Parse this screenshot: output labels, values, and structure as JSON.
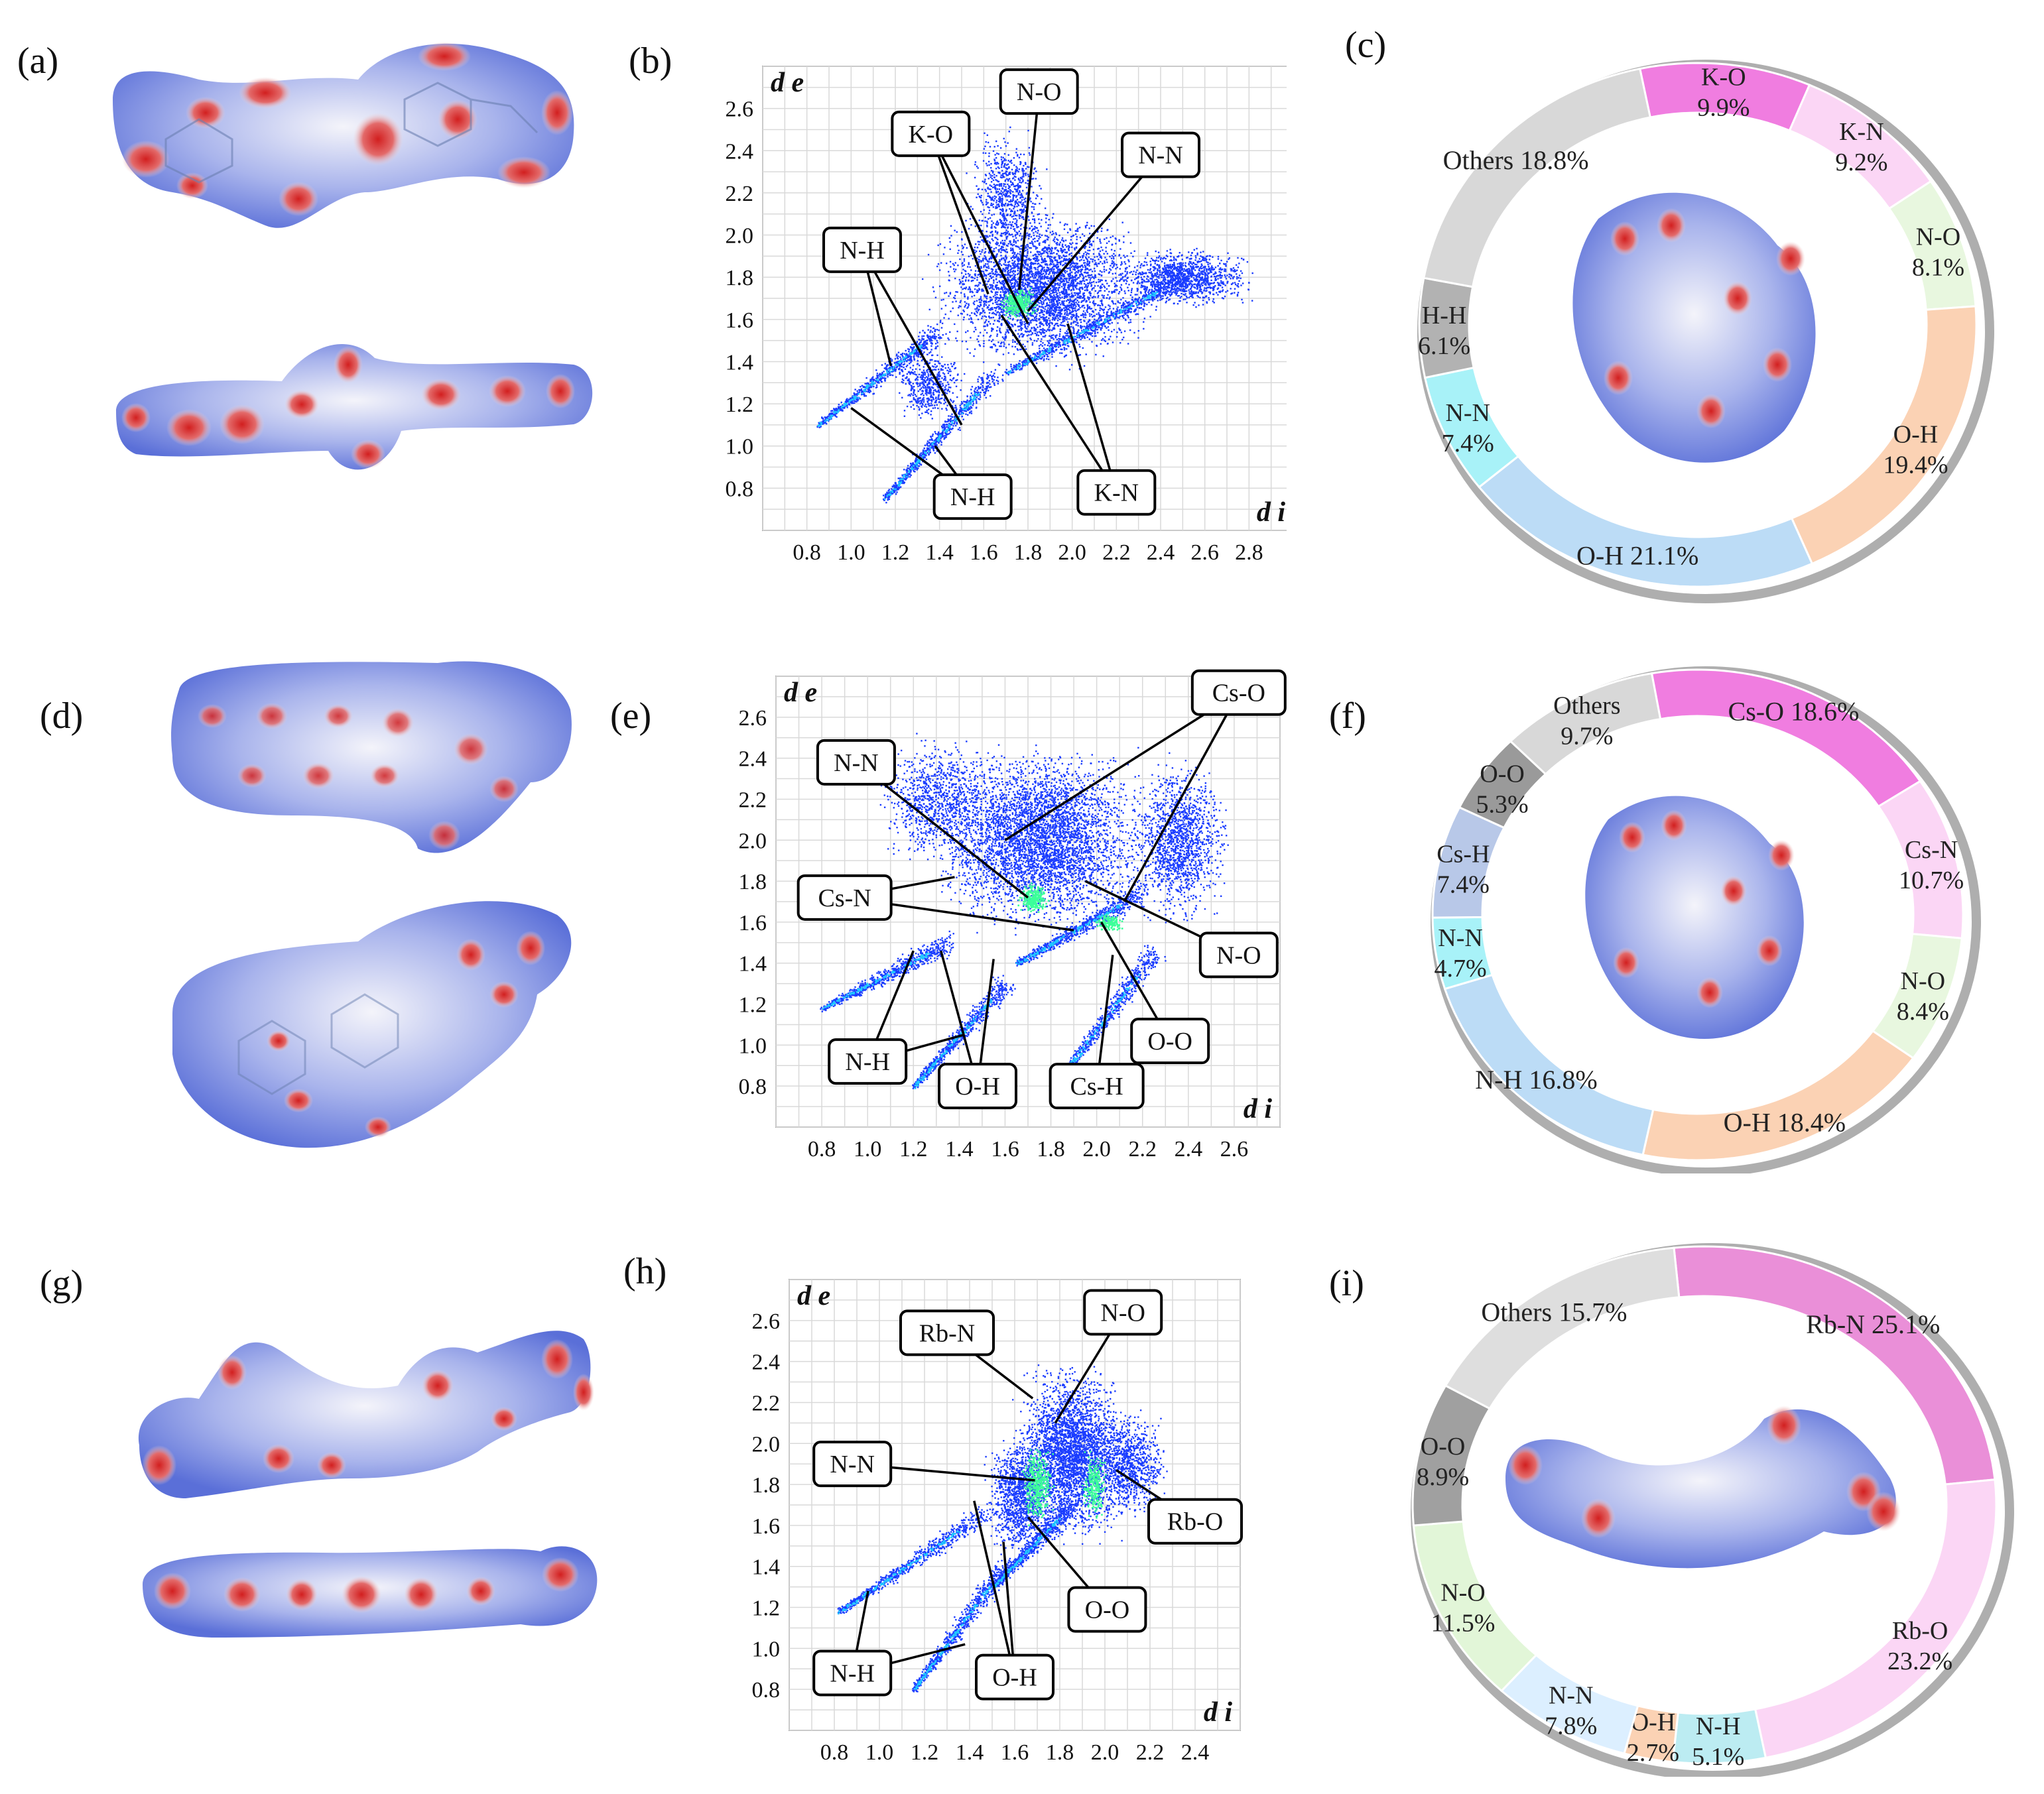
{
  "panels": {
    "a": "(a)",
    "b": "(b)",
    "c": "(c)",
    "d": "(d)",
    "e": "(e)",
    "f": "(f)",
    "g": "(g)",
    "h": "(h)",
    "i": "(i)"
  },
  "colors": {
    "surface_blue": "#5a6fd8",
    "surface_red": "#d21f1f",
    "plot_blue": "#1a3cff",
    "plot_green": "#3cff9a",
    "ring_pink": "#f07de0",
    "ring_light_pink": "#fbd6f5",
    "ring_light_green": "#e8f7df",
    "ring_peach": "#fbd2b4",
    "ring_light_blue": "#bcdcf6",
    "ring_cyan": "#a8f2f8",
    "ring_gray": "#b2b2b2",
    "ring_light_gray": "#d8d8d8"
  },
  "chart_data": [
    {
      "panel": "b",
      "type": "scatter",
      "xlabel": "d i",
      "ylabel": "d e",
      "x_ticks": [
        "0.8",
        "1.0",
        "1.2",
        "1.4",
        "1.6",
        "1.8",
        "2.0",
        "2.2",
        "2.4",
        "2.6",
        "2.8"
      ],
      "y_ticks": [
        "0.8",
        "1.0",
        "1.2",
        "1.4",
        "1.6",
        "1.8",
        "2.0",
        "2.2",
        "2.4",
        "2.6"
      ],
      "xlim": [
        0.6,
        3.0
      ],
      "ylim": [
        0.6,
        2.8
      ],
      "grid": true,
      "annotations": [
        {
          "text": "N-O",
          "box": [
            1.85,
            2.68
          ],
          "targets": [
            [
              1.76,
              1.74
            ]
          ]
        },
        {
          "text": "K-O",
          "box": [
            1.36,
            2.48
          ],
          "targets": [
            [
              1.62,
              1.72
            ],
            [
              1.8,
              1.58
            ]
          ]
        },
        {
          "text": "N-N",
          "box": [
            2.4,
            2.38
          ],
          "targets": [
            [
              1.8,
              1.64
            ]
          ]
        },
        {
          "text": "N-H",
          "box": [
            1.05,
            1.93
          ],
          "targets": [
            [
              1.18,
              1.38
            ],
            [
              1.5,
              1.1
            ]
          ]
        },
        {
          "text": "N-H",
          "box": [
            1.55,
            0.76
          ],
          "targets": [
            [
              1.0,
              1.18
            ],
            [
              1.38,
              1.0
            ]
          ]
        },
        {
          "text": "K-N",
          "box": [
            2.2,
            0.78
          ],
          "targets": [
            [
              1.68,
              1.62
            ],
            [
              1.98,
              1.58
            ]
          ]
        }
      ]
    },
    {
      "panel": "c",
      "type": "pie",
      "labels": [
        "K-O",
        "K-N",
        "N-O",
        "O-H",
        "O-H",
        "N-N",
        "H-H",
        "Others"
      ],
      "values": [
        9.9,
        9.2,
        8.1,
        19.4,
        21.1,
        7.4,
        6.1,
        18.8
      ],
      "value_labels": [
        "9.9%",
        "9.2%",
        "8.1%",
        "19.4%",
        "21.1%",
        "7.4%",
        "6.1%",
        "18.8%"
      ],
      "colors": [
        "#f07de0",
        "#fbd6f5",
        "#e8f7df",
        "#fbd2b4",
        "#bcdcf6",
        "#a8f2f8",
        "#b2b2b2",
        "#d8d8d8"
      ]
    },
    {
      "panel": "e",
      "type": "scatter",
      "xlabel": "d i",
      "ylabel": "d e",
      "x_ticks": [
        "0.8",
        "1.0",
        "1.2",
        "1.4",
        "1.6",
        "1.8",
        "2.0",
        "2.2",
        "2.4",
        "2.6"
      ],
      "y_ticks": [
        "0.8",
        "1.0",
        "1.2",
        "1.4",
        "1.6",
        "1.8",
        "2.0",
        "2.2",
        "2.4",
        "2.6"
      ],
      "xlim": [
        0.6,
        2.8
      ],
      "ylim": [
        0.6,
        2.8
      ],
      "grid": true,
      "annotations": [
        {
          "text": "Cs-O",
          "box": [
            2.62,
            2.72
          ],
          "targets": [
            [
              1.6,
              2.0
            ],
            [
              2.12,
              1.7
            ]
          ]
        },
        {
          "text": "N-N",
          "box": [
            0.95,
            2.38
          ],
          "targets": [
            [
              1.7,
              1.72
            ]
          ]
        },
        {
          "text": "Cs-N",
          "box": [
            0.9,
            1.72
          ],
          "targets": [
            [
              1.38,
              1.82
            ],
            [
              1.9,
              1.56
            ]
          ]
        },
        {
          "text": "N-O",
          "box": [
            2.62,
            1.44
          ],
          "targets": [
            [
              1.95,
              1.8
            ]
          ]
        },
        {
          "text": "O-O",
          "box": [
            2.32,
            1.02
          ],
          "targets": [
            [
              2.02,
              1.6
            ]
          ]
        },
        {
          "text": "N-H",
          "box": [
            1.0,
            0.92
          ],
          "targets": [
            [
              1.2,
              1.46
            ],
            [
              1.42,
              1.05
            ]
          ]
        },
        {
          "text": "O-H",
          "box": [
            1.48,
            0.8
          ],
          "targets": [
            [
              1.32,
              1.46
            ],
            [
              1.55,
              1.42
            ]
          ]
        },
        {
          "text": "Cs-H",
          "box": [
            2.0,
            0.8
          ],
          "targets": [
            [
              2.07,
              1.44
            ]
          ]
        }
      ]
    },
    {
      "panel": "f",
      "type": "pie",
      "labels": [
        "Cs-O",
        "Cs-N",
        "N-O",
        "O-H",
        "N-H",
        "N-N",
        "Cs-H",
        "O-O",
        "Others"
      ],
      "values": [
        18.6,
        10.7,
        8.4,
        18.4,
        16.8,
        4.7,
        7.4,
        5.3,
        9.7
      ],
      "value_labels": [
        "18.6%",
        "10.7%",
        "8.4%",
        "18.4%",
        "16.8%",
        "4.7%",
        "7.4%",
        "5.3%",
        "9.7%"
      ],
      "colors": [
        "#f07de0",
        "#fbd6f5",
        "#e8f7df",
        "#fbd2b4",
        "#bcdcf6",
        "#a8f2f8",
        "#b8c8e8",
        "#9a9a9a",
        "#d8d8d8"
      ]
    },
    {
      "panel": "h",
      "type": "scatter",
      "xlabel": "d i",
      "ylabel": "d e",
      "x_ticks": [
        "0.8",
        "1.0",
        "1.2",
        "1.4",
        "1.6",
        "1.8",
        "2.0",
        "2.2",
        "2.4"
      ],
      "y_ticks": [
        "0.8",
        "1.0",
        "1.2",
        "1.4",
        "1.6",
        "1.8",
        "2.0",
        "2.2",
        "2.4",
        "2.6"
      ],
      "xlim": [
        0.6,
        2.6
      ],
      "ylim": [
        0.6,
        2.8
      ],
      "grid": true,
      "annotations": [
        {
          "text": "Rb-N",
          "box": [
            1.3,
            2.54
          ],
          "targets": [
            [
              1.68,
              2.22
            ]
          ]
        },
        {
          "text": "N-O",
          "box": [
            2.08,
            2.64
          ],
          "targets": [
            [
              1.78,
              2.1
            ]
          ]
        },
        {
          "text": "N-N",
          "box": [
            0.88,
            1.9
          ],
          "targets": [
            [
              1.69,
              1.82
            ]
          ]
        },
        {
          "text": "Rb-O",
          "box": [
            2.4,
            1.62
          ],
          "targets": [
            [
              2.05,
              1.87
            ]
          ]
        },
        {
          "text": "O-O",
          "box": [
            2.01,
            1.19
          ],
          "targets": [
            [
              1.66,
              1.64
            ]
          ]
        },
        {
          "text": "N-H",
          "box": [
            0.88,
            0.88
          ],
          "targets": [
            [
              0.95,
              1.28
            ],
            [
              1.38,
              1.02
            ]
          ]
        },
        {
          "text": "O-H",
          "box": [
            1.6,
            0.86
          ],
          "targets": [
            [
              1.42,
              1.72
            ],
            [
              1.55,
              1.52
            ]
          ]
        }
      ]
    },
    {
      "panel": "i",
      "type": "pie",
      "labels": [
        "Rb-N",
        "Rb-O",
        "N-H",
        "O-H",
        "N-N",
        "N-O",
        "O-O",
        "Others"
      ],
      "values": [
        25.1,
        23.2,
        5.1,
        2.7,
        7.8,
        11.5,
        8.9,
        15.7
      ],
      "value_labels": [
        "25.1%",
        "23.2%",
        "5.1%",
        "2.7%",
        "7.8%",
        "11.5%",
        "8.9%",
        "15.7%"
      ],
      "colors": [
        "#ea8fd8",
        "#fbd6f5",
        "#bcecf2",
        "#fbd2b4",
        "#dcefff",
        "#e2f6d8",
        "#a0a0a0",
        "#dedede"
      ]
    }
  ]
}
